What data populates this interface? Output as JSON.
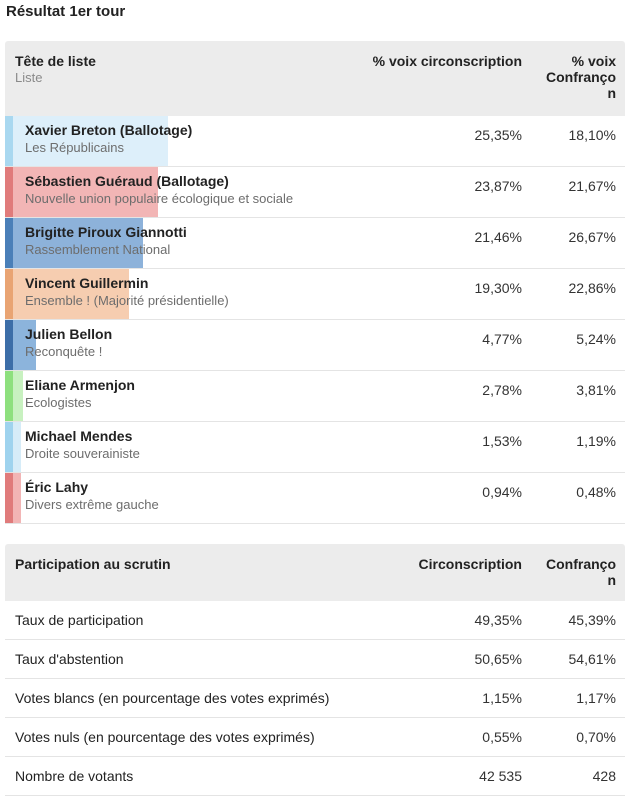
{
  "title": "Résultat 1er tour",
  "results": {
    "headers": {
      "candidate": "Tête de liste",
      "list": "Liste",
      "circ": "% voix circonscription",
      "commune_line1": "% voix",
      "commune_line2": "Confranço",
      "commune_line3": "n"
    },
    "rows": [
      {
        "name": "Xavier Breton (Ballotage)",
        "party": "Les Républicains",
        "circ": "25,35%",
        "commune": "18,10%",
        "share": 25.35,
        "color": "#a9d8f0",
        "light": "#ddeffa"
      },
      {
        "name": "Sébastien Guéraud (Ballotage)",
        "party": "Nouvelle union populaire écologique et sociale",
        "circ": "23,87%",
        "commune": "21,67%",
        "share": 23.87,
        "color": "#e07b7b",
        "light": "#f2b5b5"
      },
      {
        "name": "Brigitte Piroux Giannotti",
        "party": "Rassemblement National",
        "circ": "21,46%",
        "commune": "26,67%",
        "share": 21.46,
        "color": "#4a7fb8",
        "light": "#8db2da"
      },
      {
        "name": "Vincent Guillermin",
        "party": "Ensemble ! (Majorité présidentielle)",
        "circ": "19,30%",
        "commune": "22,86%",
        "share": 19.3,
        "color": "#e9a473",
        "light": "#f6cdb0"
      },
      {
        "name": "Julien Bellon",
        "party": "Reconquête !",
        "circ": "4,77%",
        "commune": "5,24%",
        "share": 4.77,
        "color": "#3c6ea8",
        "light": "#8cb4dc"
      },
      {
        "name": "Eliane Armenjon",
        "party": "Ecologistes",
        "circ": "2,78%",
        "commune": "3,81%",
        "share": 2.78,
        "color": "#8ee07e",
        "light": "#c8f1c0"
      },
      {
        "name": "Michael Mendes",
        "party": "Droite souverainiste",
        "circ": "1,53%",
        "commune": "1,19%",
        "share": 1.53,
        "color": "#9fd3ee",
        "light": "#d6ecf8"
      },
      {
        "name": "Éric Lahy",
        "party": "Divers extrême gauche",
        "circ": "0,94%",
        "commune": "0,48%",
        "share": 0.94,
        "color": "#e07b7b",
        "light": "#f2b5b5"
      }
    ]
  },
  "participation": {
    "headers": {
      "label": "Participation au scrutin",
      "circ": "Circonscription",
      "commune_line1": "Confranço",
      "commune_line2": "n"
    },
    "rows": [
      {
        "label": "Taux de participation",
        "circ": "49,35%",
        "commune": "45,39%"
      },
      {
        "label": "Taux d'abstention",
        "circ": "50,65%",
        "commune": "54,61%"
      },
      {
        "label": "Votes blancs (en pourcentage des votes exprimés)",
        "circ": "1,15%",
        "commune": "1,17%"
      },
      {
        "label": "Votes nuls (en pourcentage des votes exprimés)",
        "circ": "0,55%",
        "commune": "0,70%"
      },
      {
        "label": "Nombre de votants",
        "circ": "42 535",
        "commune": "428"
      }
    ]
  }
}
